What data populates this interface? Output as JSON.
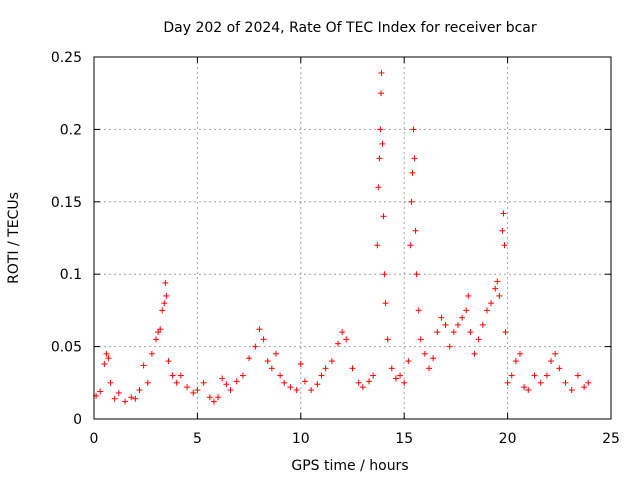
{
  "chart_data": {
    "type": "scatter",
    "title": "Day 202 of 2024, Rate Of TEC Index for receiver bcar",
    "xlabel": "GPS time / hours",
    "ylabel": "ROTI / TECUs",
    "xlim": [
      0,
      25
    ],
    "ylim": [
      0,
      0.25
    ],
    "xticks": [
      0,
      5,
      10,
      15,
      20,
      25
    ],
    "xtick_labels": [
      "0",
      "5",
      "10",
      "15",
      "20",
      "25"
    ],
    "yticks": [
      0,
      0.05,
      0.1,
      0.15,
      0.2,
      0.25
    ],
    "ytick_labels": [
      "0",
      "0.05",
      "0.1",
      "0.15",
      "0.2",
      "0.25"
    ],
    "grid": true,
    "marker": "+",
    "marker_color": "#ff0000",
    "series": [
      {
        "name": "ROTI",
        "points": [
          [
            0.1,
            0.016
          ],
          [
            0.3,
            0.019
          ],
          [
            0.5,
            0.038
          ],
          [
            0.6,
            0.045
          ],
          [
            0.7,
            0.042
          ],
          [
            0.8,
            0.025
          ],
          [
            1.0,
            0.014
          ],
          [
            1.2,
            0.018
          ],
          [
            1.5,
            0.012
          ],
          [
            1.8,
            0.015
          ],
          [
            2.0,
            0.014
          ],
          [
            2.2,
            0.02
          ],
          [
            2.4,
            0.037
          ],
          [
            2.6,
            0.025
          ],
          [
            2.8,
            0.045
          ],
          [
            3.0,
            0.055
          ],
          [
            3.1,
            0.06
          ],
          [
            3.2,
            0.062
          ],
          [
            3.3,
            0.075
          ],
          [
            3.4,
            0.08
          ],
          [
            3.45,
            0.094
          ],
          [
            3.5,
            0.085
          ],
          [
            3.6,
            0.04
          ],
          [
            3.8,
            0.03
          ],
          [
            4.0,
            0.025
          ],
          [
            4.2,
            0.03
          ],
          [
            4.5,
            0.022
          ],
          [
            4.8,
            0.018
          ],
          [
            5.0,
            0.02
          ],
          [
            5.3,
            0.025
          ],
          [
            5.6,
            0.015
          ],
          [
            5.8,
            0.012
          ],
          [
            6.0,
            0.015
          ],
          [
            6.2,
            0.028
          ],
          [
            6.4,
            0.024
          ],
          [
            6.6,
            0.02
          ],
          [
            6.9,
            0.026
          ],
          [
            7.2,
            0.03
          ],
          [
            7.5,
            0.042
          ],
          [
            7.8,
            0.05
          ],
          [
            8.0,
            0.062
          ],
          [
            8.2,
            0.055
          ],
          [
            8.4,
            0.04
          ],
          [
            8.6,
            0.035
          ],
          [
            8.8,
            0.045
          ],
          [
            9.0,
            0.03
          ],
          [
            9.2,
            0.025
          ],
          [
            9.5,
            0.022
          ],
          [
            9.8,
            0.02
          ],
          [
            10.0,
            0.038
          ],
          [
            10.2,
            0.026
          ],
          [
            10.5,
            0.02
          ],
          [
            10.8,
            0.024
          ],
          [
            11.0,
            0.03
          ],
          [
            11.2,
            0.035
          ],
          [
            11.5,
            0.04
          ],
          [
            11.8,
            0.052
          ],
          [
            12.0,
            0.06
          ],
          [
            12.2,
            0.055
          ],
          [
            12.5,
            0.035
          ],
          [
            12.8,
            0.025
          ],
          [
            13.0,
            0.022
          ],
          [
            13.3,
            0.026
          ],
          [
            13.5,
            0.03
          ],
          [
            13.7,
            0.12
          ],
          [
            13.75,
            0.16
          ],
          [
            13.8,
            0.18
          ],
          [
            13.85,
            0.2
          ],
          [
            13.88,
            0.225
          ],
          [
            13.9,
            0.239
          ],
          [
            13.95,
            0.19
          ],
          [
            14.0,
            0.14
          ],
          [
            14.05,
            0.1
          ],
          [
            14.1,
            0.08
          ],
          [
            14.2,
            0.055
          ],
          [
            14.4,
            0.035
          ],
          [
            14.6,
            0.028
          ],
          [
            14.8,
            0.03
          ],
          [
            15.0,
            0.025
          ],
          [
            15.2,
            0.04
          ],
          [
            15.3,
            0.12
          ],
          [
            15.35,
            0.15
          ],
          [
            15.4,
            0.17
          ],
          [
            15.45,
            0.2
          ],
          [
            15.5,
            0.18
          ],
          [
            15.55,
            0.13
          ],
          [
            15.6,
            0.1
          ],
          [
            15.7,
            0.075
          ],
          [
            15.8,
            0.055
          ],
          [
            16.0,
            0.045
          ],
          [
            16.2,
            0.035
          ],
          [
            16.4,
            0.042
          ],
          [
            16.6,
            0.06
          ],
          [
            16.8,
            0.07
          ],
          [
            17.0,
            0.065
          ],
          [
            17.2,
            0.05
          ],
          [
            17.4,
            0.06
          ],
          [
            17.6,
            0.065
          ],
          [
            17.8,
            0.07
          ],
          [
            18.0,
            0.075
          ],
          [
            18.1,
            0.085
          ],
          [
            18.2,
            0.06
          ],
          [
            18.4,
            0.045
          ],
          [
            18.6,
            0.055
          ],
          [
            18.8,
            0.065
          ],
          [
            19.0,
            0.075
          ],
          [
            19.2,
            0.08
          ],
          [
            19.4,
            0.09
          ],
          [
            19.5,
            0.095
          ],
          [
            19.6,
            0.085
          ],
          [
            19.75,
            0.13
          ],
          [
            19.8,
            0.142
          ],
          [
            19.85,
            0.12
          ],
          [
            19.9,
            0.06
          ],
          [
            20.0,
            0.025
          ],
          [
            20.2,
            0.03
          ],
          [
            20.4,
            0.04
          ],
          [
            20.6,
            0.045
          ],
          [
            20.8,
            0.022
          ],
          [
            21.0,
            0.02
          ],
          [
            21.3,
            0.03
          ],
          [
            21.6,
            0.025
          ],
          [
            21.9,
            0.03
          ],
          [
            22.1,
            0.04
          ],
          [
            22.3,
            0.045
          ],
          [
            22.5,
            0.035
          ],
          [
            22.8,
            0.025
          ],
          [
            23.1,
            0.02
          ],
          [
            23.4,
            0.03
          ],
          [
            23.7,
            0.022
          ],
          [
            23.9,
            0.025
          ]
        ]
      }
    ]
  }
}
